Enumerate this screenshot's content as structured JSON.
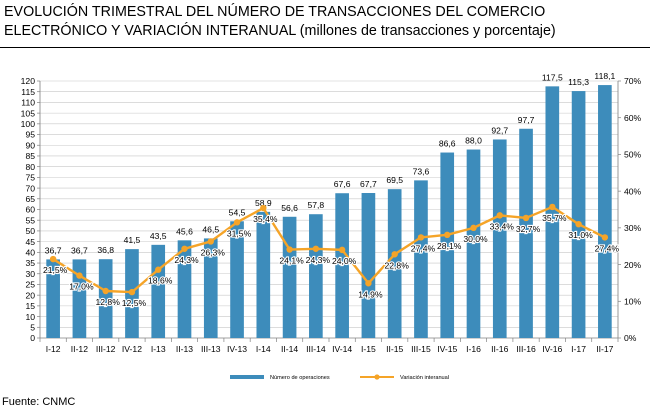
{
  "title": "EVOLUCIÓN TRIMESTRAL DEL NÚMERO DE TRANSACCIONES DEL COMERCIO",
  "title_line2": "ELECTRÓNICO Y VARIACIÓN INTERANUAL (millones de transacciones y porcentaje)",
  "source": "Fuente: CNMC",
  "colors": {
    "bar": "#3d8cbb",
    "line": "#f5a428",
    "grid": "#c8c8c8"
  },
  "chart_data": {
    "type": "bar",
    "categories": [
      "I-12",
      "II-12",
      "III-12",
      "IV-12",
      "I-13",
      "II-13",
      "III-13",
      "IV-13",
      "I-14",
      "II-14",
      "III-14",
      "IV-14",
      "I-15",
      "II-15",
      "III-15",
      "IV-15",
      "I-16",
      "II-16",
      "III-16",
      "IV-16",
      "I-17",
      "II-17"
    ],
    "series": [
      {
        "name": "Número de operaciones",
        "type": "bar",
        "axis": "left",
        "values": [
          36.7,
          36.7,
          36.8,
          41.5,
          43.5,
          45.6,
          46.5,
          54.5,
          58.9,
          56.6,
          57.8,
          67.6,
          67.7,
          69.5,
          73.6,
          86.6,
          88.0,
          92.7,
          97.7,
          117.5,
          115.3,
          118.1
        ],
        "labels": [
          "36,7",
          "36,7",
          "36,8",
          "41,5",
          "43,5",
          "45,6",
          "46,5",
          "54,5",
          "58,9",
          "56,6",
          "57,8",
          "67,6",
          "67,7",
          "69,5",
          "73,6",
          "86,6",
          "88,0",
          "92,7",
          "97,7",
          "117,5",
          "115,3",
          "118,1"
        ]
      },
      {
        "name": "Variación interanual",
        "type": "line",
        "axis": "right",
        "values": [
          21.5,
          17.0,
          12.8,
          12.5,
          18.6,
          24.3,
          26.3,
          31.5,
          35.4,
          24.1,
          24.3,
          24.0,
          14.9,
          22.8,
          27.4,
          28.1,
          30.0,
          33.4,
          32.7,
          35.7,
          31.0,
          27.4
        ],
        "labels": [
          "21,5%",
          "17,0%",
          "12,8%",
          "12,5%",
          "18,6%",
          "24,3%",
          "26,3%",
          "31,5%",
          "35,4%",
          "24,1%",
          "24,3%",
          "24,0%",
          "14,9%",
          "22,8%",
          "27,4%",
          "28,1%",
          "30,0%",
          "33,4%",
          "32,7%",
          "35,7%",
          "31,0%",
          "27,4%"
        ]
      }
    ],
    "y_left": {
      "min": 0,
      "max": 120,
      "step": 5,
      "ticks": [
        "0",
        "5",
        "10",
        "15",
        "20",
        "25",
        "30",
        "35",
        "40",
        "45",
        "50",
        "55",
        "60",
        "65",
        "70",
        "75",
        "80",
        "85",
        "90",
        "95",
        "100",
        "105",
        "110",
        "115",
        "120"
      ]
    },
    "y_right": {
      "min": 0,
      "max": 70,
      "step": 10,
      "ticks": [
        "0%",
        "10%",
        "20%",
        "30%",
        "40%",
        "50%",
        "60%",
        "70%"
      ]
    },
    "grid": true,
    "legend_position": "bottom-center",
    "legend": [
      "Número de operaciones",
      "Variación interanual"
    ]
  }
}
